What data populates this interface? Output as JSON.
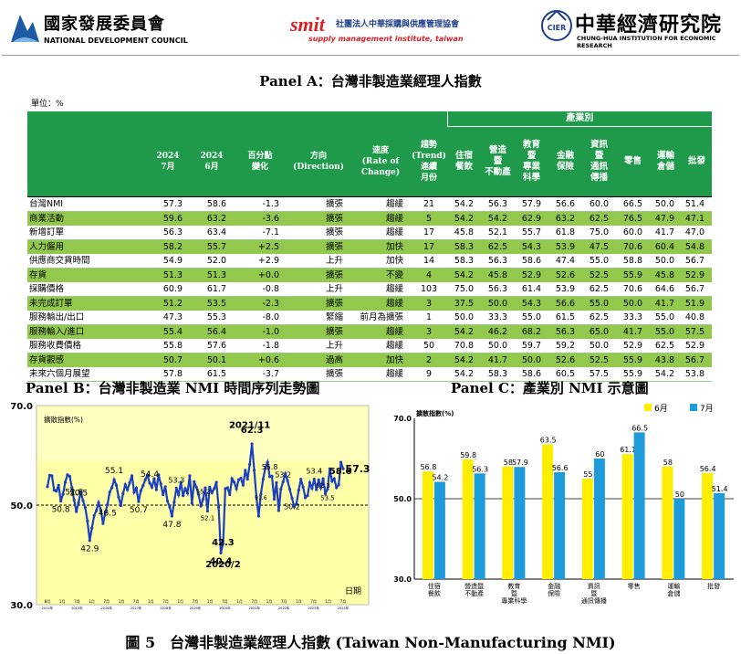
{
  "header": {
    "ndc_cn": "國家發展委員會",
    "ndc_en": "NATIONAL DEVELOPMENT COUNCIL",
    "smit": "smit",
    "smit_cn": "社團法人中華採購與供應管理協會",
    "smit_en": "supply management institute, taiwan",
    "cier_logo": "CIER",
    "cier_cn": "中華經濟研究院",
    "cier_en": "CHUNG-HUA INSTITUTION FOR ECONOMIC RESEARCH"
  },
  "colors": {
    "green_header": "#1f9a4b",
    "green_row": "#92c94c",
    "yellow_series": "#ffee00",
    "blue_series": "#1e9bdb",
    "line_series": "#1a3fc4"
  },
  "panelA": {
    "title": "Panel A：台灣非製造業經理人指數",
    "unit": "單位：%",
    "industry_group": "產業別",
    "columns": [
      "2024\n7月",
      "2024\n6月",
      "百分點\n變化",
      "方向\n(Direction)",
      "速度\n(Rate of\nChange)",
      "趨勢\n(Trend)\n連續\n月份",
      "住宿\n餐飲",
      "營造\n暨\n不動產",
      "教育\n暨\n專業\n科學",
      "金融\n保險",
      "資訊\n暨\n通訊\n傳播",
      "零售",
      "運輸\n倉儲",
      "批發"
    ],
    "rows": [
      {
        "name": "台灣NMI",
        "jul": "57.3",
        "jun": "58.6",
        "chg": "-1.3",
        "dir": "擴張",
        "rate": "趨緩",
        "trend": "21",
        "v": [
          "54.2",
          "56.3",
          "57.9",
          "56.6",
          "60.0",
          "66.5",
          "50.0",
          "51.4"
        ],
        "hl": false
      },
      {
        "name": "商業活動",
        "jul": "59.6",
        "jun": "63.2",
        "chg": "-3.6",
        "dir": "擴張",
        "rate": "趨緩",
        "trend": "5",
        "v": [
          "54.2",
          "54.2",
          "62.9",
          "63.2",
          "62.5",
          "76.5",
          "47.9",
          "47.1"
        ],
        "hl": true
      },
      {
        "name": "新增訂單",
        "jul": "56.3",
        "jun": "63.4",
        "chg": "-7.1",
        "dir": "擴張",
        "rate": "趨緩",
        "trend": "17",
        "v": [
          "45.8",
          "52.1",
          "55.7",
          "61.8",
          "75.0",
          "60.0",
          "41.7",
          "47.0"
        ],
        "hl": false
      },
      {
        "name": "人力僱用",
        "jul": "58.2",
        "jun": "55.7",
        "chg": "+2.5",
        "dir": "擴張",
        "rate": "加快",
        "trend": "17",
        "v": [
          "58.3",
          "62.5",
          "54.3",
          "53.9",
          "47.5",
          "70.6",
          "60.4",
          "54.8"
        ],
        "hl": true
      },
      {
        "name": "供應商交貨時間",
        "jul": "54.9",
        "jun": "52.0",
        "chg": "+2.9",
        "dir": "上升",
        "rate": "加快",
        "trend": "14",
        "v": [
          "58.3",
          "56.3",
          "58.6",
          "47.4",
          "55.0",
          "58.8",
          "50.0",
          "56.7"
        ],
        "hl": false
      },
      {
        "name": "存貨",
        "jul": "51.3",
        "jun": "51.3",
        "chg": "+0.0",
        "dir": "擴張",
        "rate": "不變",
        "trend": "4",
        "v": [
          "54.2",
          "45.8",
          "52.9",
          "52.6",
          "52.5",
          "55.9",
          "45.8",
          "52.9"
        ],
        "hl": true
      },
      {
        "name": "採購價格",
        "jul": "60.9",
        "jun": "61.7",
        "chg": "-0.8",
        "dir": "上升",
        "rate": "趨緩",
        "trend": "103",
        "v": [
          "75.0",
          "56.3",
          "61.4",
          "53.9",
          "62.5",
          "70.6",
          "64.6",
          "56.7"
        ],
        "hl": false
      },
      {
        "name": "未完成訂單",
        "jul": "51.2",
        "jun": "53.5",
        "chg": "-2.3",
        "dir": "擴張",
        "rate": "趨緩",
        "trend": "3",
        "v": [
          "37.5",
          "50.0",
          "54.3",
          "56.6",
          "55.0",
          "50.0",
          "41.7",
          "51.9"
        ],
        "hl": true
      },
      {
        "name": "服務輸出/出口",
        "jul": "47.3",
        "jun": "55.3",
        "chg": "-8.0",
        "dir": "緊縮",
        "rate": "前月為擴張",
        "trend": "1",
        "v": [
          "50.0",
          "33.3",
          "55.0",
          "61.5",
          "62.5",
          "33.3",
          "55.0",
          "40.8"
        ],
        "hl": false
      },
      {
        "name": "服務輸入/進口",
        "jul": "55.4",
        "jun": "56.4",
        "chg": "-1.0",
        "dir": "擴張",
        "rate": "趨緩",
        "trend": "3",
        "v": [
          "54.2",
          "46.2",
          "68.2",
          "56.3",
          "65.0",
          "41.7",
          "55.0",
          "57.5"
        ],
        "hl": true
      },
      {
        "name": "服務收費價格",
        "jul": "55.8",
        "jun": "57.6",
        "chg": "-1.8",
        "dir": "上升",
        "rate": "趨緩",
        "trend": "50",
        "v": [
          "70.8",
          "50.0",
          "59.7",
          "59.2",
          "50.0",
          "52.9",
          "62.5",
          "52.9"
        ],
        "hl": false
      },
      {
        "name": "存貨觀感",
        "jul": "50.7",
        "jun": "50.1",
        "chg": "+0.6",
        "dir": "過高",
        "rate": "加快",
        "trend": "2",
        "v": [
          "54.2",
          "41.7",
          "50.0",
          "52.6",
          "52.5",
          "55.9",
          "43.8",
          "56.7"
        ],
        "hl": true
      },
      {
        "name": "未來六個月展望",
        "jul": "57.8",
        "jun": "61.5",
        "chg": "-3.7",
        "dir": "擴張",
        "rate": "趨緩",
        "trend": "9",
        "v": [
          "54.2",
          "58.3",
          "58.6",
          "60.5",
          "57.5",
          "55.9",
          "54.2",
          "53.8"
        ],
        "hl": false
      }
    ]
  },
  "chart_data": [
    {
      "type": "line",
      "title": "Panel B：台灣非製造業 NMI 時間序列走勢圖",
      "ylabel": "擴散指數(%)",
      "xlabel": "日期",
      "ylim": [
        30,
        70
      ],
      "yticks": [
        "70.0",
        "50.0",
        "30.0"
      ],
      "reference_line": 50,
      "x_start": "2014-08",
      "x_end": "2024-07",
      "x_tick_labels": [
        "8月",
        "1月",
        "7月",
        "1月",
        "7月",
        "1月",
        "7月",
        "1月",
        "7月",
        "1月",
        "7月",
        "1月",
        "7月",
        "1月",
        "7月",
        "1月",
        "7月",
        "1月",
        "7月",
        "1月",
        "7月"
      ],
      "x_tick_years": [
        "2014年",
        "2015年",
        "2016年",
        "2017年",
        "2018年",
        "2019年",
        "2020年",
        "2021年",
        "2022年",
        "2023年",
        "2024年"
      ],
      "values": [
        53.7,
        56.0,
        55.9,
        53.0,
        52.8,
        54.0,
        50.8,
        52.2,
        54.6,
        56.1,
        55.8,
        53.5,
        51.0,
        48.7,
        50.5,
        52.7,
        50.9,
        49.5,
        46.8,
        42.9,
        45.4,
        47.9,
        48.9,
        50.5,
        49.0,
        46.3,
        48.5,
        50.1,
        52.6,
        53.5,
        55.1,
        54.0,
        51.6,
        49.9,
        52.3,
        54.1,
        53.1,
        54.5,
        55.9,
        52.6,
        53.4,
        50.7,
        52.9,
        53.9,
        55.1,
        56.0,
        54.4,
        53.6,
        55.3,
        53.1,
        56.1,
        54.2,
        52.1,
        53.7,
        50.8,
        49.6,
        47.8,
        50.6,
        53.4,
        52.1,
        54.6,
        51.9,
        53.3,
        52.4,
        55.9,
        50.4,
        54.7,
        53.6,
        52.1,
        49.8,
        51.2,
        53.5,
        48.8,
        53.6,
        52.5,
        53.3,
        54.6,
        49.6,
        40.4,
        42.3,
        53.3,
        53.5,
        52.1,
        55.3,
        54.6,
        53.3,
        55.1,
        55.4,
        54.0,
        57.0,
        55.2,
        58.2,
        62.3,
        57.0,
        51.6,
        47.8,
        52.2,
        55.2,
        57.4,
        58.6,
        55.7,
        55.8,
        51.2,
        54.5,
        48.9,
        53.2,
        54.7,
        56.3,
        54.9,
        53.2,
        51.4,
        49.7,
        50.2,
        53.0,
        55.2,
        53.6,
        51.5,
        51.9,
        54.5,
        53.4,
        55.2,
        53.1,
        55.1,
        53.5,
        55.3,
        52.3,
        53.2,
        57.3,
        54.8,
        55.3,
        53.5,
        54.1,
        58.6,
        57.3
      ],
      "annotations": [
        {
          "text": "52.8"
        },
        {
          "text": "50.8"
        },
        {
          "text": "50.5"
        },
        {
          "text": "42.9"
        },
        {
          "text": "55.1"
        },
        {
          "text": "48.5"
        },
        {
          "text": "54.4"
        },
        {
          "text": "50.7"
        },
        {
          "text": "53.3"
        },
        {
          "text": "47.8"
        },
        {
          "text": "55.2"
        },
        {
          "text": "52.1"
        },
        {
          "text": "40.4"
        },
        {
          "text": "42.3"
        },
        {
          "text": "2020/2"
        },
        {
          "text": "2021/11"
        },
        {
          "text": "62.3"
        },
        {
          "text": "55.8"
        },
        {
          "text": "51.6"
        },
        {
          "text": "53.2"
        },
        {
          "text": "50.2"
        },
        {
          "text": "53.4"
        },
        {
          "text": "52.3"
        },
        {
          "text": "58.6"
        },
        {
          "text": "57.3"
        },
        {
          "text": "53.5"
        }
      ]
    },
    {
      "type": "bar",
      "title": "Panel C：產業別 NMI 示意圖",
      "ylabel": "擴散指數(%)",
      "ylim": [
        30,
        70
      ],
      "yticks": [
        "70.0",
        "50.0",
        "30.0"
      ],
      "categories": [
        "住宿\n餐飲",
        "營造暨\n不動產",
        "教育\n暨\n專業科學",
        "金融\n保險",
        "資訊\n暨\n通訊傳播",
        "零售",
        "運輸\n倉儲",
        "批發"
      ],
      "series": [
        {
          "name": "6月",
          "color": "#ffee00",
          "values": [
            56.8,
            59.8,
            58.0,
            63.5,
            55.0,
            61.1,
            58.0,
            56.4
          ]
        },
        {
          "name": "7月",
          "color": "#1e9bdb",
          "values": [
            54.2,
            56.3,
            57.9,
            56.6,
            60.0,
            66.5,
            50.0,
            51.4
          ]
        }
      ]
    }
  ],
  "caption": "圖 5　台灣非製造業經理人指數 (Taiwan Non-Manufacturing NMI)"
}
